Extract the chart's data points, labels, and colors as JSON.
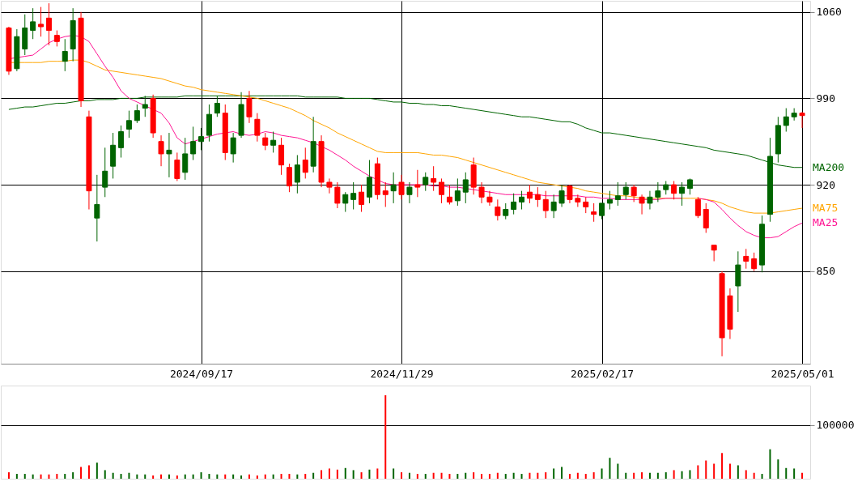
{
  "chart_data": [
    {
      "type": "candlestick",
      "categories": [
        null,
        null,
        null,
        null,
        null,
        null,
        null,
        null,
        null,
        null,
        null,
        null,
        null,
        null,
        null,
        null,
        null,
        null,
        null,
        null,
        null,
        null,
        null,
        null,
        "2024/09/17",
        null,
        null,
        null,
        null,
        null,
        null,
        null,
        null,
        null,
        null,
        null,
        null,
        null,
        null,
        null,
        null,
        null,
        null,
        null,
        null,
        null,
        null,
        null,
        null,
        "2024/11/29",
        null,
        null,
        null,
        null,
        null,
        null,
        null,
        null,
        null,
        null,
        null,
        null,
        null,
        null,
        null,
        null,
        null,
        null,
        null,
        null,
        null,
        null,
        null,
        null,
        "2025/02/17",
        null,
        null,
        null,
        null,
        null,
        null,
        null,
        null,
        null,
        null,
        null,
        null,
        null,
        null,
        null,
        null,
        null,
        null,
        null,
        null,
        null,
        null,
        null,
        null,
        "2025/05/01"
      ],
      "ohlc": [
        [
          1047,
          1048,
          1009,
          1012
        ],
        [
          1014,
          1046,
          1012,
          1040
        ],
        [
          1030,
          1058,
          1025,
          1047
        ],
        [
          1045,
          1063,
          1038,
          1052
        ],
        [
          1050,
          1064,
          1040,
          1048
        ],
        [
          1055,
          1067,
          1033,
          1045
        ],
        [
          1041,
          1045,
          1032,
          1036
        ],
        [
          1020,
          1038,
          1012,
          1028
        ],
        [
          1030,
          1063,
          1020,
          1053
        ],
        [
          1055,
          1060,
          983,
          988
        ],
        [
          975,
          980,
          900,
          915
        ],
        [
          893,
          928,
          874,
          904
        ],
        [
          918,
          950,
          910,
          931
        ],
        [
          935,
          962,
          925,
          952
        ],
        [
          950,
          968,
          942,
          963
        ],
        [
          965,
          980,
          958,
          972
        ],
        [
          972,
          985,
          970,
          980
        ],
        [
          982,
          992,
          975,
          985
        ],
        [
          990,
          993,
          958,
          962
        ],
        [
          955,
          960,
          935,
          945
        ],
        [
          945,
          962,
          926,
          948
        ],
        [
          940,
          946,
          923,
          925
        ],
        [
          930,
          958,
          924,
          945
        ],
        [
          945,
          967,
          940,
          955
        ],
        [
          955,
          966,
          948,
          959
        ],
        [
          960,
          985,
          955,
          977
        ],
        [
          978,
          992,
          975,
          986
        ],
        [
          978,
          985,
          940,
          946
        ],
        [
          945,
          962,
          938,
          958
        ],
        [
          960,
          995,
          958,
          985
        ],
        [
          990,
          996,
          970,
          975
        ],
        [
          973,
          978,
          955,
          960
        ],
        [
          958,
          962,
          948,
          952
        ],
        [
          952,
          963,
          946,
          956
        ],
        [
          952,
          958,
          928,
          936
        ],
        [
          934,
          937,
          914,
          919
        ],
        [
          922,
          944,
          913,
          936
        ],
        [
          940,
          950,
          925,
          930
        ],
        [
          935,
          975,
          930,
          955
        ],
        [
          955,
          960,
          918,
          922
        ],
        [
          922,
          925,
          913,
          918
        ],
        [
          918,
          922,
          901,
          905
        ],
        [
          905,
          914,
          898,
          912
        ],
        [
          908,
          922,
          900,
          913
        ],
        [
          914,
          920,
          898,
          904
        ],
        [
          910,
          940,
          905,
          926
        ],
        [
          937,
          942,
          908,
          912
        ],
        [
          915,
          922,
          902,
          912
        ],
        [
          915,
          930,
          905,
          920
        ],
        [
          922,
          928,
          908,
          912
        ],
        [
          912,
          922,
          905,
          918
        ],
        [
          920,
          932,
          910,
          918
        ],
        [
          920,
          930,
          915,
          926
        ],
        [
          925,
          935,
          915,
          922
        ],
        [
          922,
          925,
          905,
          912
        ],
        [
          910,
          920,
          904,
          906
        ],
        [
          907,
          925,
          903,
          915
        ],
        [
          914,
          930,
          905,
          924
        ],
        [
          936,
          942,
          912,
          918
        ],
        [
          918,
          922,
          905,
          910
        ],
        [
          910,
          915,
          903,
          906
        ],
        [
          902,
          908,
          891,
          895
        ],
        [
          895,
          905,
          892,
          900
        ],
        [
          900,
          913,
          896,
          906
        ],
        [
          906,
          915,
          900,
          910
        ],
        [
          914,
          920,
          905,
          909
        ],
        [
          912,
          918,
          902,
          908
        ],
        [
          908,
          915,
          893,
          899
        ],
        [
          899,
          912,
          893,
          906
        ],
        [
          905,
          920,
          902,
          915
        ],
        [
          919,
          920,
          905,
          908
        ],
        [
          909,
          912,
          902,
          906
        ],
        [
          906,
          910,
          897,
          902
        ],
        [
          898,
          905,
          890,
          896
        ],
        [
          895,
          905,
          892,
          905
        ],
        [
          905,
          915,
          900,
          908
        ],
        [
          908,
          922,
          903,
          911
        ],
        [
          912,
          922,
          908,
          918
        ],
        [
          918,
          920,
          906,
          911
        ],
        [
          910,
          912,
          896,
          905
        ],
        [
          905,
          915,
          900,
          910
        ],
        [
          910,
          922,
          906,
          915
        ],
        [
          916,
          923,
          912,
          920
        ],
        [
          920,
          923,
          908,
          913
        ],
        [
          913,
          922,
          903,
          918
        ],
        [
          917,
          925,
          912,
          924
        ],
        [
          908,
          910,
          893,
          895
        ],
        [
          900,
          905,
          881,
          885
        ],
        [
          871,
          871,
          858,
          867
        ],
        [
          848,
          850,
          781,
          796
        ],
        [
          830,
          836,
          795,
          803
        ],
        [
          838,
          866,
          817,
          855
        ],
        [
          862,
          868,
          852,
          858
        ],
        [
          860,
          865,
          850,
          852
        ],
        [
          855,
          895,
          849,
          888
        ],
        [
          896,
          958,
          890,
          943
        ],
        [
          945,
          975,
          938,
          968
        ],
        [
          968,
          982,
          963,
          975
        ],
        [
          975,
          982,
          972,
          978
        ],
        [
          978,
          979,
          966,
          976
        ]
      ],
      "colors": [
        "#ff0000",
        "#006400",
        "#006400",
        "#006400",
        "#ff0000",
        "#ff0000",
        "#ff0000",
        "#006400",
        "#006400",
        "#ff0000",
        "#ff0000",
        "#006400",
        "#006400",
        "#006400",
        "#006400",
        "#006400",
        "#006400",
        "#006400",
        "#ff0000",
        "#ff0000",
        "#006400",
        "#ff0000",
        "#006400",
        "#006400",
        "#006400",
        "#006400",
        "#006400",
        "#ff0000",
        "#006400",
        "#006400",
        "#ff0000",
        "#ff0000",
        "#ff0000",
        "#006400",
        "#ff0000",
        "#ff0000",
        "#006400",
        "#ff0000",
        "#006400",
        "#ff0000",
        "#ff0000",
        "#ff0000",
        "#006400",
        "#006400",
        "#ff0000",
        "#006400",
        "#ff0000",
        "#ff0000",
        "#006400",
        "#ff0000",
        "#006400",
        "#ff0000",
        "#006400",
        "#ff0000",
        "#ff0000",
        "#ff0000",
        "#006400",
        "#006400",
        "#ff0000",
        "#ff0000",
        "#ff0000",
        "#ff0000",
        "#006400",
        "#006400",
        "#006400",
        "#ff0000",
        "#ff0000",
        "#ff0000",
        "#006400",
        "#006400",
        "#ff0000",
        "#ff0000",
        "#ff0000",
        "#ff0000",
        "#006400",
        "#006400",
        "#006400",
        "#006400",
        "#ff0000",
        "#ff0000",
        "#006400",
        "#006400",
        "#006400",
        "#ff0000",
        "#006400",
        "#006400",
        "#ff0000",
        "#ff0000",
        "#ff0000",
        "#ff0000",
        "#ff0000",
        "#006400",
        "#ff0000",
        "#ff0000",
        "#006400",
        "#006400",
        "#006400",
        "#006400",
        "#006400",
        "#ff0000"
      ],
      "series": [
        {
          "name": "MA200",
          "type": "line",
          "color": "#006400",
          "values": [
            981,
            982,
            983,
            983,
            984,
            985,
            986,
            986,
            987,
            988,
            988,
            989,
            989,
            989,
            990,
            990,
            990,
            991,
            991,
            991,
            991,
            991,
            992,
            992,
            992,
            992,
            992,
            992,
            992,
            992,
            992,
            992,
            992,
            992,
            992,
            992,
            992,
            991,
            991,
            991,
            991,
            991,
            990,
            990,
            990,
            990,
            989,
            988,
            987,
            987,
            986,
            986,
            985,
            985,
            984,
            984,
            983,
            982,
            981,
            980,
            979,
            978,
            977,
            976,
            975,
            975,
            974,
            973,
            972,
            971,
            971,
            969,
            966,
            964,
            962,
            962,
            961,
            960,
            959,
            958,
            957,
            956,
            955,
            954,
            953,
            952,
            951,
            950,
            948,
            947,
            946,
            945,
            944,
            942,
            940,
            938,
            936,
            935,
            934,
            934
          ]
        },
        {
          "name": "MA75",
          "type": "line",
          "color": "#ffa500",
          "values": [
            1019,
            1019,
            1019,
            1019,
            1019,
            1020,
            1020,
            1020,
            1021,
            1021,
            1019,
            1016,
            1013,
            1012,
            1011,
            1010,
            1009,
            1008,
            1007,
            1006,
            1004,
            1002,
            1000,
            999,
            997,
            996,
            995,
            994,
            993,
            992,
            991,
            990,
            988,
            986,
            984,
            982,
            979,
            976,
            972,
            969,
            966,
            962,
            959,
            956,
            953,
            950,
            947,
            946,
            946,
            946,
            946,
            946,
            945,
            944,
            944,
            943,
            942,
            940,
            938,
            936,
            934,
            932,
            930,
            928,
            926,
            924,
            922,
            921,
            920,
            919,
            918,
            917,
            915,
            914,
            913,
            912,
            911,
            911,
            910,
            909,
            909,
            909,
            909,
            909,
            909,
            909,
            909,
            908,
            907,
            905,
            902,
            900,
            898,
            897,
            897,
            897,
            898,
            899,
            900,
            901
          ]
        },
        {
          "name": "MA25",
          "type": "line",
          "color": "#ff1493",
          "values": [
            1022,
            1023,
            1024,
            1025,
            1030,
            1035,
            1038,
            1040,
            1041,
            1040,
            1036,
            1026,
            1016,
            1007,
            996,
            990,
            987,
            984,
            981,
            978,
            970,
            958,
            953,
            955,
            957,
            959,
            961,
            962,
            963,
            961,
            960,
            961,
            963,
            962,
            960,
            959,
            958,
            956,
            954,
            951,
            948,
            944,
            940,
            935,
            931,
            927,
            924,
            921,
            920,
            920,
            920,
            920,
            920,
            919,
            919,
            918,
            918,
            917,
            916,
            915,
            914,
            913,
            912,
            912,
            912,
            912,
            912,
            911,
            911,
            911,
            911,
            911,
            910,
            910,
            909,
            909,
            908,
            908,
            908,
            908,
            908,
            908,
            909,
            909,
            909,
            null,
            909,
            908,
            906,
            900,
            893,
            887,
            882,
            879,
            877,
            877,
            878,
            882,
            886,
            889
          ]
        }
      ],
      "ylim": [
        775,
        1069
      ],
      "yticks": [
        850,
        920,
        990,
        1060
      ],
      "grid": true
    },
    {
      "type": "bar",
      "tick_labels": "y",
      "grid": "y",
      "ylim": [
        0,
        174000
      ],
      "yticks": [
        100000
      ],
      "categories": [
        null,
        null,
        null,
        null,
        null,
        null,
        null,
        null,
        null,
        null,
        null,
        null,
        null,
        null,
        null,
        null,
        null,
        null,
        null,
        null,
        null,
        null,
        null,
        null,
        null,
        null,
        null,
        null,
        null,
        null,
        null,
        null,
        null,
        null,
        null,
        null,
        null,
        null,
        null,
        null,
        null,
        null,
        null,
        null,
        null,
        null,
        null,
        null,
        null,
        null,
        null,
        null,
        null,
        null,
        null,
        null,
        null,
        null,
        null,
        null,
        null,
        null,
        null,
        null,
        null,
        null,
        null,
        null,
        null,
        null,
        null,
        null,
        null,
        null,
        null,
        null,
        null,
        null,
        null,
        null,
        null,
        null,
        null,
        null,
        null,
        null,
        null,
        null,
        null,
        null,
        null,
        null,
        null,
        null,
        null,
        null,
        null,
        null,
        null,
        null
      ],
      "values": [
        12000,
        9000,
        9000,
        8000,
        8000,
        8000,
        9000,
        9000,
        12000,
        22000,
        25000,
        30000,
        16000,
        11000,
        9000,
        11000,
        8000,
        8000,
        6000,
        8000,
        8000,
        6000,
        8000,
        8000,
        12000,
        9000,
        8000,
        8000,
        8000,
        6000,
        8000,
        6000,
        8000,
        8000,
        9000,
        9000,
        8000,
        9000,
        11000,
        16000,
        19000,
        17000,
        20000,
        16000,
        12000,
        17000,
        19000,
        156000,
        19000,
        12000,
        11000,
        9000,
        9000,
        11000,
        11000,
        9000,
        9000,
        11000,
        12000,
        9000,
        9000,
        11000,
        9000,
        11000,
        9000,
        11000,
        11000,
        12000,
        19000,
        22000,
        9000,
        11000,
        9000,
        12000,
        19000,
        39000,
        28000,
        11000,
        11000,
        12000,
        11000,
        11000,
        12000,
        16000,
        14000,
        16000,
        25000,
        34000,
        28000,
        48000,
        28000,
        25000,
        16000,
        11000,
        9000,
        55000,
        36000,
        20000,
        19000,
        11000
      ],
      "colors": [
        "#ff0000",
        "#006400",
        "#006400",
        "#006400",
        "#ff0000",
        "#ff0000",
        "#ff0000",
        "#006400",
        "#006400",
        "#ff0000",
        "#ff0000",
        "#006400",
        "#006400",
        "#006400",
        "#006400",
        "#006400",
        "#006400",
        "#006400",
        "#ff0000",
        "#ff0000",
        "#006400",
        "#ff0000",
        "#006400",
        "#006400",
        "#006400",
        "#006400",
        "#006400",
        "#ff0000",
        "#006400",
        "#006400",
        "#ff0000",
        "#ff0000",
        "#ff0000",
        "#006400",
        "#ff0000",
        "#ff0000",
        "#006400",
        "#ff0000",
        "#006400",
        "#ff0000",
        "#ff0000",
        "#ff0000",
        "#006400",
        "#006400",
        "#ff0000",
        "#006400",
        "#ff0000",
        "#ff0000",
        "#006400",
        "#ff0000",
        "#006400",
        "#ff0000",
        "#006400",
        "#ff0000",
        "#ff0000",
        "#ff0000",
        "#006400",
        "#006400",
        "#ff0000",
        "#ff0000",
        "#ff0000",
        "#ff0000",
        "#006400",
        "#006400",
        "#006400",
        "#ff0000",
        "#ff0000",
        "#ff0000",
        "#006400",
        "#006400",
        "#ff0000",
        "#ff0000",
        "#ff0000",
        "#ff0000",
        "#006400",
        "#006400",
        "#006400",
        "#006400",
        "#ff0000",
        "#ff0000",
        "#006400",
        "#006400",
        "#006400",
        "#ff0000",
        "#006400",
        "#006400",
        "#ff0000",
        "#ff0000",
        "#ff0000",
        "#ff0000",
        "#ff0000",
        "#006400",
        "#ff0000",
        "#ff0000",
        "#006400",
        "#006400",
        "#006400",
        "#006400",
        "#006400",
        "#ff0000"
      ]
    }
  ]
}
